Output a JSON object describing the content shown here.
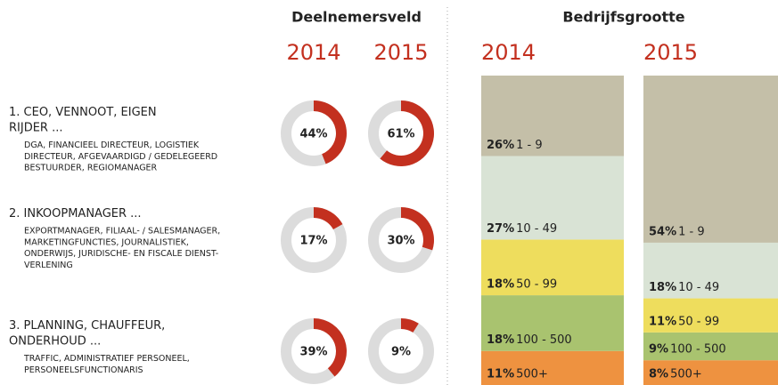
{
  "chart_data": [
    {
      "type": "donut",
      "title": "Deelnemersveld",
      "categories": [
        "1. CEO, VENNOOT, EIGEN RIJDER ...",
        "2. INKOOPMANAGER ...",
        "3. PLANNING, CHAUFFEUR, ONDERHOUD ..."
      ],
      "category_notes": [
        "DGA, FINANCIEEL DIRECTEUR, LOGISTIEK DIRECTEUR, AFGEVAARDIGD / GEDELEGEERD BESTUURDER, REGIOMANAGER",
        "EXPORTMANAGER, FILIAAL- / SALESMANAGER, MARKETINGFUNCTIES, JOURNALISTIEK, ONDERWIJS, JURIDISCHE- EN FISCALE DIENST- VERLENING",
        "TRAFFIC, ADMINISTRATIEF PERSONEEL, PERSONEELSFUNCTIONARIS"
      ],
      "ylim": [
        0,
        100
      ],
      "series": [
        {
          "name": "2014",
          "color": "#c3301f",
          "values": [
            44,
            17,
            39
          ],
          "value_labels": [
            "44%",
            "17%",
            "39%"
          ]
        },
        {
          "name": "2015",
          "color": "#c3301f",
          "values": [
            61,
            30,
            9
          ],
          "value_labels": [
            "61%",
            "30%",
            "9%"
          ]
        }
      ]
    },
    {
      "type": "stacked_column",
      "title": "Bedrijfsgrootte",
      "categories": [
        "2014",
        "2015"
      ],
      "ylim": [
        0,
        100
      ],
      "series": [
        {
          "name": "500+",
          "color": "#ee9240",
          "values": [
            11,
            8
          ],
          "value_labels": [
            "11%",
            "8%"
          ]
        },
        {
          "name": "100 - 500",
          "color": "#a9c36f",
          "values": [
            18,
            9
          ],
          "value_labels": [
            "18%",
            "9%"
          ]
        },
        {
          "name": "50 - 99",
          "color": "#eedd5d",
          "values": [
            18,
            11
          ],
          "value_labels": [
            "18%",
            "11%"
          ]
        },
        {
          "name": "10 - 49",
          "color": "#d9e3d5",
          "values": [
            27,
            18
          ],
          "value_labels": [
            "27%",
            "18%"
          ]
        },
        {
          "name": "1 - 9",
          "color": "#c4bfa8",
          "values": [
            26,
            54
          ],
          "value_labels": [
            "26%",
            "54%"
          ]
        }
      ]
    }
  ]
}
